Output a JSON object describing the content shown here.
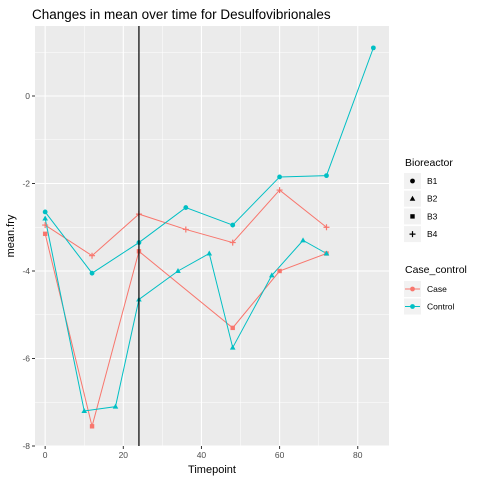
{
  "chart_data": {
    "type": "line",
    "title": "Changes in mean over time for  Desulfovibrionales",
    "xlabel": "Timepoint",
    "ylabel": "mean.fry",
    "xlim": [
      -2.6,
      88
    ],
    "ylim": [
      -8,
      1.6
    ],
    "x_ticks": [
      0,
      20,
      40,
      60,
      80
    ],
    "y_ticks": [
      0,
      -2,
      -4,
      -6,
      -8
    ],
    "grid": true,
    "vline_x": 24,
    "legend_position": "right",
    "colors": {
      "Case": "#F8766D",
      "Control": "#00BFC4",
      "vline": "#000000",
      "panel": "#EBEBEB",
      "grid": "#FFFFFF"
    },
    "bioreactor_legend": {
      "title": "Bioreactor",
      "items": [
        {
          "label": "B1",
          "shape": "circle"
        },
        {
          "label": "B2",
          "shape": "triangle"
        },
        {
          "label": "B3",
          "shape": "square"
        },
        {
          "label": "B4",
          "shape": "plus"
        }
      ]
    },
    "case_legend": {
      "title": "Case_control",
      "items": [
        {
          "label": "Case",
          "color": "#F8766D"
        },
        {
          "label": "Control",
          "color": "#00BFC4"
        }
      ]
    },
    "series": [
      {
        "group": "Case",
        "shape": "square",
        "x": [
          0,
          12,
          24,
          48,
          60,
          72
        ],
        "values": [
          -3.15,
          -7.55,
          -3.55,
          -5.3,
          -4.0,
          -3.6
        ]
      },
      {
        "group": "Case",
        "shape": "plus",
        "x": [
          0,
          12,
          24,
          36,
          48,
          60,
          72
        ],
        "values": [
          -2.95,
          -3.65,
          -2.7,
          -3.05,
          -3.35,
          -2.15,
          -3.0
        ]
      },
      {
        "group": "Control",
        "shape": "circle",
        "x": [
          0,
          12,
          24,
          36,
          48,
          60,
          72,
          84
        ],
        "values": [
          -2.65,
          -4.05,
          -3.35,
          -2.55,
          -2.95,
          -1.85,
          -1.82,
          1.1
        ]
      },
      {
        "group": "Control",
        "shape": "triangle",
        "x": [
          0,
          10,
          18,
          24,
          34,
          42,
          48,
          58,
          66,
          72
        ],
        "values": [
          -2.8,
          -7.2,
          -7.1,
          -4.65,
          -4.0,
          -3.6,
          -5.75,
          -4.1,
          -3.3,
          -3.6
        ]
      }
    ]
  }
}
